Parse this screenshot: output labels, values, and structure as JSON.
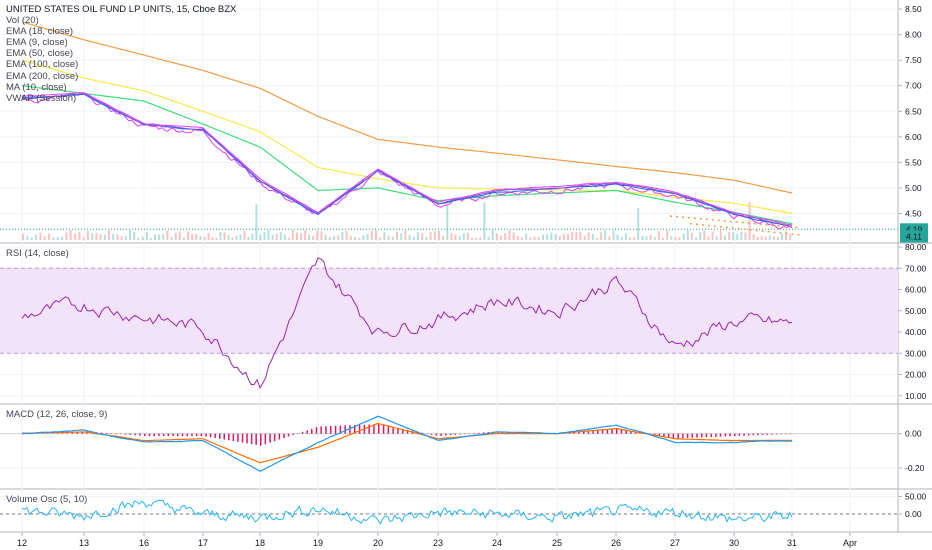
{
  "header": {
    "title": "UNITED STATES OIL FUND LP UNITS, 15, Cboe BZX",
    "indicators": [
      "Vol (20)",
      "EMA (18, close)",
      "EMA (9, close)",
      "EMA (50, close)",
      "EMA (100, close)",
      "EMA (200, close)",
      "MA (10, close)",
      "VWAP (Session)"
    ]
  },
  "badges": {
    "price": "4.19",
    "price2": "4.11"
  },
  "colors": {
    "rsi_line": "#9c27b0",
    "rsi_band": "#f3e3fa",
    "macd_line": "#2196f3",
    "signal_line": "#ff6d00",
    "histogram": "#d81b60",
    "ema200": "#f29b49",
    "ema100": "#f5ea4a",
    "ema50": "#3ddb7c",
    "ema18": "#e040fb",
    "ema9": "#2962ff",
    "ma10": "#7e57c2",
    "vol_osc": "#29b6f6",
    "badge": "#26a69a"
  },
  "chart_data": [
    {
      "type": "line",
      "title": "UNITED STATES OIL FUND LP UNITS, 15, Cboe BZX",
      "ylim": [
        4.0,
        8.6
      ],
      "yticks": [
        "8.50",
        "8.00",
        "7.50",
        "7.00",
        "6.50",
        "6.00",
        "5.50",
        "5.00",
        "4.50"
      ],
      "x_labels": [
        "12",
        "13",
        "16",
        "17",
        "18",
        "19",
        "20",
        "23",
        "24",
        "25",
        "26",
        "27",
        "30",
        "31",
        "Apr"
      ],
      "x": [
        12,
        13,
        16,
        17,
        18,
        19,
        20,
        23,
        24,
        25,
        26,
        27,
        30,
        31
      ],
      "series": [
        {
          "name": "EMA (200, close)",
          "values": [
            8.25,
            7.9,
            7.6,
            7.3,
            6.95,
            6.4,
            5.95,
            5.8,
            5.68,
            5.55,
            5.42,
            5.3,
            5.15,
            4.9
          ]
        },
        {
          "name": "EMA (100, close)",
          "values": [
            7.5,
            7.15,
            6.9,
            6.5,
            6.1,
            5.4,
            5.18,
            5.0,
            4.98,
            4.96,
            4.95,
            4.82,
            4.7,
            4.5
          ]
        },
        {
          "name": "EMA (50, close)",
          "values": [
            7.0,
            6.85,
            6.7,
            6.25,
            5.8,
            4.95,
            5.0,
            4.75,
            4.85,
            4.9,
            4.95,
            4.72,
            4.52,
            4.3
          ]
        },
        {
          "name": "Close",
          "values": [
            6.7,
            6.8,
            6.2,
            6.1,
            5.1,
            4.45,
            5.3,
            4.65,
            4.9,
            4.95,
            5.05,
            4.85,
            4.45,
            4.2
          ]
        }
      ]
    },
    {
      "type": "line",
      "title": "RSI (14, close)",
      "ylim": [
        8,
        80
      ],
      "yticks": [
        "80.00",
        "70.00",
        "60.00",
        "50.00",
        "40.00",
        "30.00",
        "20.00",
        "10.00"
      ],
      "band": [
        30,
        70
      ],
      "series": [
        {
          "name": "RSI (14, close)",
          "values": [
            48,
            53,
            47,
            42,
            15,
            73,
            40,
            46,
            55,
            50,
            64,
            33,
            45,
            44
          ]
        }
      ]
    },
    {
      "type": "line",
      "title": "MACD (12, 26, close, 9)",
      "ylim": [
        -0.3,
        0.15
      ],
      "yticks": [
        "0.00",
        "-0.20"
      ],
      "series": [
        {
          "name": "MACD",
          "values": [
            0.0,
            0.02,
            -0.05,
            -0.04,
            -0.22,
            -0.05,
            0.1,
            -0.04,
            0.01,
            0.0,
            0.05,
            -0.05,
            -0.05,
            -0.04
          ]
        },
        {
          "name": "Signal",
          "values": [
            0.0,
            0.01,
            -0.04,
            -0.03,
            -0.17,
            -0.08,
            0.06,
            -0.03,
            0.0,
            0.0,
            0.03,
            -0.03,
            -0.04,
            -0.04
          ]
        }
      ]
    },
    {
      "type": "line",
      "title": "Volume Osc (5, 10)",
      "ylim": [
        -40,
        60
      ],
      "yticks": [
        "50.00",
        "0.00"
      ],
      "series": [
        {
          "name": "Volume Osc (5, 10)",
          "values": [
            10,
            -5,
            35,
            0,
            -10,
            15,
            -20,
            5,
            0,
            -10,
            10,
            5,
            -15,
            -5
          ]
        }
      ]
    }
  ]
}
